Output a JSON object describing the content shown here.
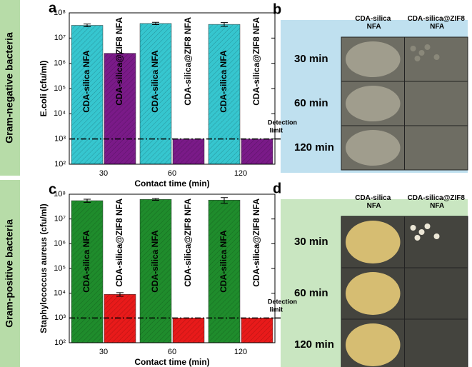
{
  "side_labels": [
    "Gram-negative bacteria",
    "Gram-positive bacteria"
  ],
  "chart_data": [
    {
      "type": "bar",
      "panel_label": "a",
      "xlabel": "Contact time (min)",
      "ylabel": "E.coli (cfu/ml)",
      "categories": [
        "30",
        "60",
        "120"
      ],
      "yscale": "log",
      "ylim": [
        100,
        100000000
      ],
      "yticks": [
        {
          "value": 100,
          "label": "10²"
        },
        {
          "value": 1000,
          "label": "10³"
        },
        {
          "value": 10000,
          "label": "10⁴"
        },
        {
          "value": 100000,
          "label": "10⁵"
        },
        {
          "value": 1000000,
          "label": "10⁶"
        },
        {
          "value": 10000000,
          "label": "10⁷"
        },
        {
          "value": 100000000,
          "label": "10⁸"
        }
      ],
      "series": [
        {
          "name": "CDA-silica NFA",
          "color": "#36c6cf",
          "values": [
            32000000,
            38000000,
            35000000
          ],
          "errors": [
            4000000,
            4000000,
            6000000
          ]
        },
        {
          "name": "CDA-silica@ZIF8 NFA",
          "color": "#7a1a88",
          "values": [
            2500000,
            1000,
            1000
          ],
          "errors": [
            400,
            0,
            0
          ]
        }
      ],
      "annotations": [
        {
          "text": "Detection limit",
          "y": 1000
        }
      ]
    },
    {
      "type": "bar",
      "panel_label": "c",
      "xlabel": "Contact time (min)",
      "ylabel": "Staphylococcus aureus (cfu/ml)",
      "categories": [
        "30",
        "60",
        "120"
      ],
      "yscale": "log",
      "ylim": [
        100,
        100000000
      ],
      "yticks": [
        {
          "value": 100,
          "label": "10²"
        },
        {
          "value": 1000,
          "label": "10³"
        },
        {
          "value": 10000,
          "label": "10⁴"
        },
        {
          "value": 100000,
          "label": "10⁵"
        },
        {
          "value": 1000000,
          "label": "10⁶"
        },
        {
          "value": 10000000,
          "label": "10⁷"
        },
        {
          "value": 100000000,
          "label": "10⁸"
        }
      ],
      "series": [
        {
          "name": "CDA-silica NFA",
          "color": "#1f8c2c",
          "values": [
            55000000,
            62000000,
            58000000
          ],
          "errors": [
            8000000,
            5000000,
            15000000
          ]
        },
        {
          "name": "CDA-silica@ZIF8 NFA",
          "color": "#e81a1a",
          "values": [
            9000,
            1000,
            1000
          ],
          "errors": [
            1500,
            0,
            0
          ]
        }
      ],
      "annotations": [
        {
          "text": "Detection limit",
          "y": 1000
        }
      ]
    }
  ],
  "photo_panels": [
    {
      "panel_label": "b",
      "columns": [
        "CDA-silica NFA",
        "CDA-silica@ZIF8 NFA"
      ],
      "rows": [
        "30 min",
        "60 min",
        "120 min"
      ]
    },
    {
      "panel_label": "d",
      "columns": [
        "CDA-silica NFA",
        "CDA-silica@ZIF8 NFA"
      ],
      "rows": [
        "30 min",
        "60 min",
        "120 min"
      ]
    }
  ]
}
